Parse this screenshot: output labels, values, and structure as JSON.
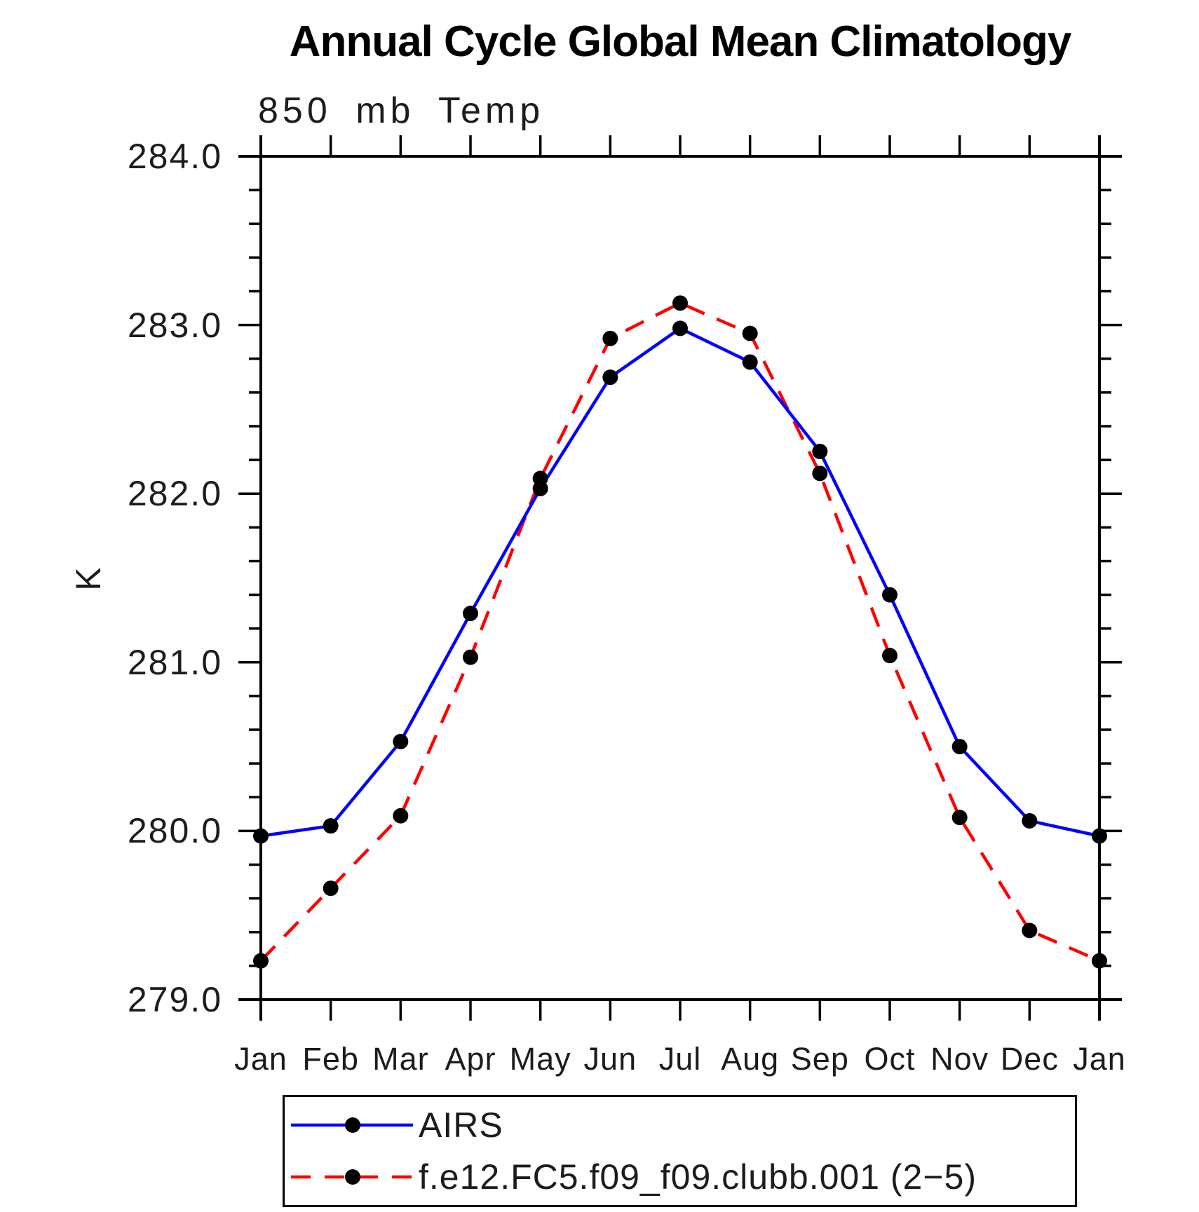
{
  "title": "Annual Cycle Global Mean Climatology",
  "subtitle": "850 mb Temp",
  "y_axis_title": "K",
  "chart_data": {
    "type": "line",
    "categories": [
      "Jan",
      "Feb",
      "Mar",
      "Apr",
      "May",
      "Jun",
      "Jul",
      "Aug",
      "Sep",
      "Oct",
      "Nov",
      "Dec",
      "Jan"
    ],
    "ylim": [
      279.0,
      284.0
    ],
    "ytick_major_step": 1.0,
    "ytick_minor_step": 0.2,
    "ytick_labels": [
      "284.0",
      "283.0",
      "282.0",
      "281.0",
      "280.0",
      "279.0"
    ],
    "grid": "off",
    "legend_position": "bottom-left-box",
    "series": [
      {
        "name": "AIRS",
        "color": "#0000ff",
        "line_style": "solid",
        "marker": "filled-circle",
        "marker_color": "#000000",
        "values": [
          279.97,
          280.03,
          280.53,
          281.29,
          282.03,
          282.69,
          282.98,
          282.78,
          282.25,
          281.4,
          280.5,
          280.06,
          279.97
        ]
      },
      {
        "name": "f.e12.FC5.f09_f09.clubb.001 (2−5)",
        "color": "#ff0000",
        "line_style": "dashed",
        "marker": "filled-circle",
        "marker_color": "#000000",
        "values": [
          279.23,
          279.66,
          280.09,
          281.03,
          282.09,
          282.92,
          283.13,
          282.95,
          282.12,
          281.04,
          280.08,
          279.41,
          279.23
        ]
      }
    ]
  }
}
